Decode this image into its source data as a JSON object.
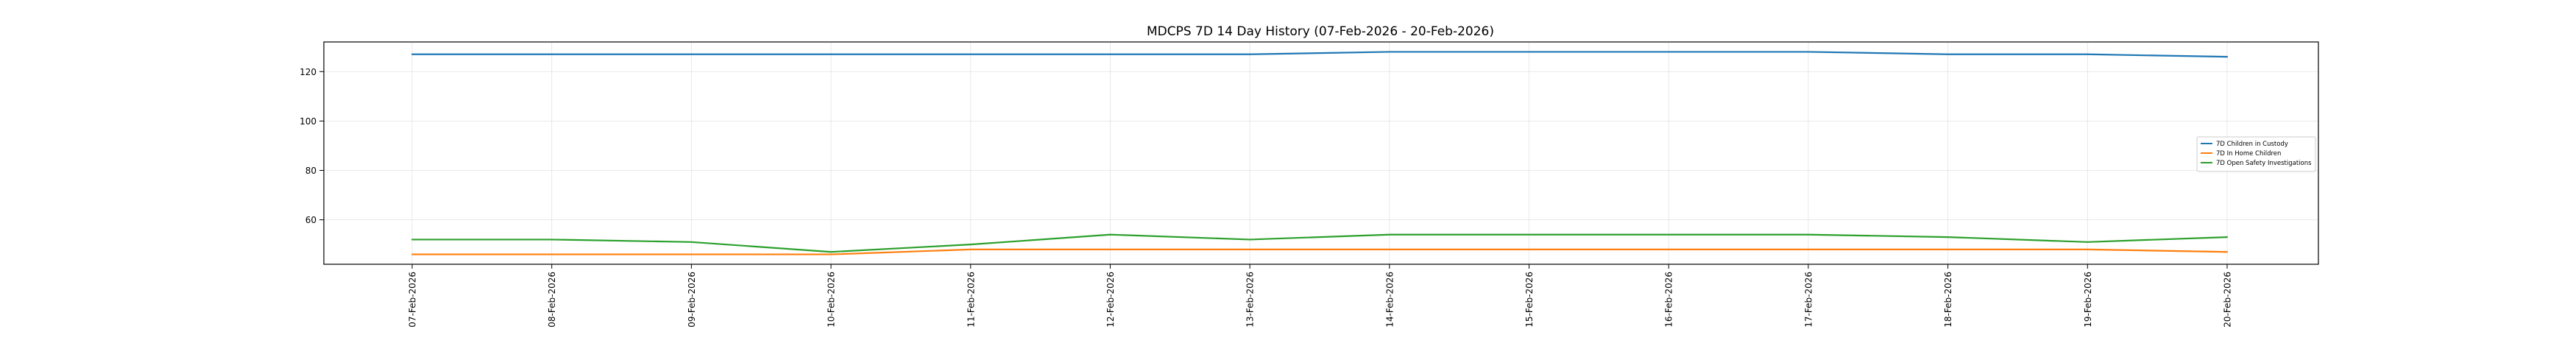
{
  "chart_data": {
    "type": "line",
    "title": "MDCPS 7D 14 Day History (07-Feb-2026 - 20-Feb-2026)",
    "xlabel": "",
    "ylabel": "",
    "categories": [
      "07-Feb-2026",
      "08-Feb-2026",
      "09-Feb-2026",
      "10-Feb-2026",
      "11-Feb-2026",
      "12-Feb-2026",
      "13-Feb-2026",
      "14-Feb-2026",
      "15-Feb-2026",
      "16-Feb-2026",
      "17-Feb-2026",
      "18-Feb-2026",
      "19-Feb-2026",
      "20-Feb-2026"
    ],
    "series": [
      {
        "name": "7D Children in Custody",
        "color": "#1f77b4",
        "values": [
          127,
          127,
          127,
          127,
          127,
          127,
          127,
          128,
          128,
          128,
          128,
          127,
          127,
          126
        ]
      },
      {
        "name": "7D In Home Children",
        "color": "#ff7f0e",
        "values": [
          46,
          46,
          46,
          46,
          48,
          48,
          48,
          48,
          48,
          48,
          48,
          48,
          48,
          47
        ]
      },
      {
        "name": "7D Open Safety Investigations",
        "color": "#2ca02c",
        "values": [
          52,
          52,
          51,
          47,
          50,
          54,
          52,
          54,
          54,
          54,
          54,
          53,
          51,
          53
        ]
      }
    ],
    "yticks": [
      60,
      80,
      100,
      120
    ],
    "ylim": [
      42,
      132
    ],
    "grid": true,
    "legend_position": "center-right"
  }
}
